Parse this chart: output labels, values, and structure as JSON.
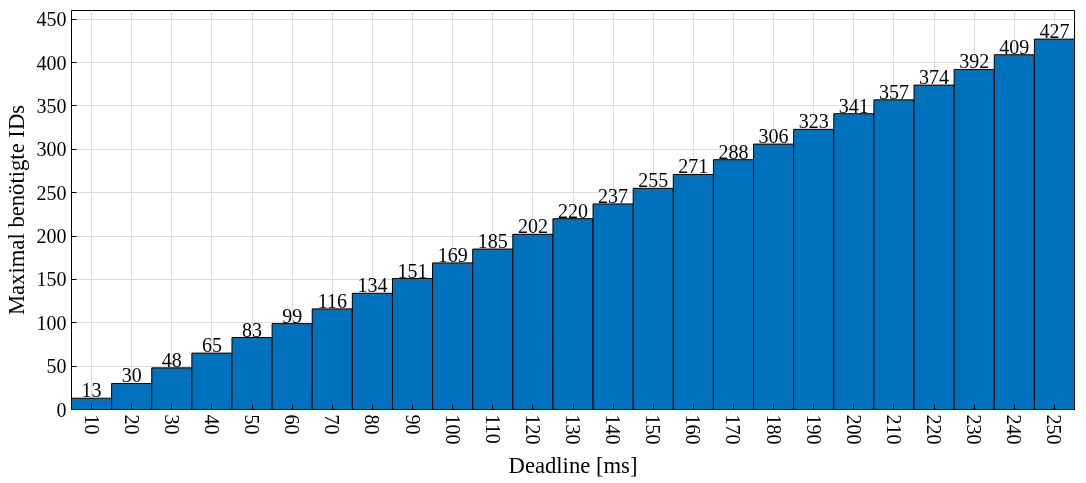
{
  "chart_data": {
    "type": "bar",
    "xlabel": "Deadline [ms]",
    "ylabel": "Maximal benötigte IDs",
    "categories": [
      "10",
      "20",
      "30",
      "40",
      "50",
      "60",
      "70",
      "80",
      "90",
      "100",
      "110",
      "120",
      "130",
      "140",
      "150",
      "160",
      "170",
      "180",
      "190",
      "200",
      "210",
      "220",
      "230",
      "240",
      "250"
    ],
    "values": [
      13,
      30,
      48,
      65,
      83,
      99,
      116,
      134,
      151,
      169,
      185,
      202,
      220,
      237,
      255,
      271,
      288,
      306,
      323,
      341,
      357,
      374,
      392,
      409,
      427
    ],
    "color": "#0072bd",
    "ylim": [
      0,
      460
    ],
    "yticks": [
      0,
      50,
      100,
      150,
      200,
      250,
      300,
      350,
      400,
      450
    ],
    "grid": true,
    "data_labels": true
  }
}
